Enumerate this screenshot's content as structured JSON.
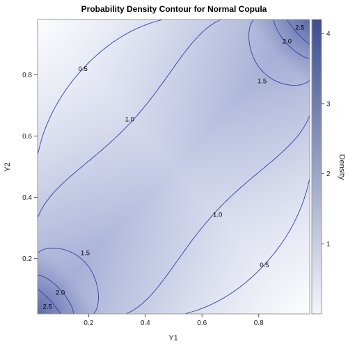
{
  "chart_data": {
    "type": "contour",
    "title": "Probability Density Contour for Normal Copula",
    "xlabel": "Y1",
    "ylabel": "Y2",
    "xlim": [
      0.02,
      0.98
    ],
    "ylim": [
      0.02,
      0.98
    ],
    "x_ticks": [
      0.2,
      0.4,
      0.6,
      0.8
    ],
    "y_ticks": [
      0.2,
      0.4,
      0.6,
      0.8
    ],
    "x_tick_labels": [
      "0.2",
      "0.4",
      "0.6",
      "0.8"
    ],
    "y_tick_labels": [
      "0.2",
      "0.4",
      "0.6",
      "0.8"
    ],
    "contour_levels": [
      0.5,
      1.0,
      1.5,
      2.0,
      2.5
    ],
    "contour_labels": [
      {
        "text": "0.5",
        "x": 0.18,
        "y": 0.82
      },
      {
        "text": "1.0",
        "x": 0.345,
        "y": 0.655
      },
      {
        "text": "1.5",
        "x": 0.812,
        "y": 0.78
      },
      {
        "text": "2.0",
        "x": 0.9,
        "y": 0.91
      },
      {
        "text": "2.5",
        "x": 0.945,
        "y": 0.955
      },
      {
        "text": "0.5",
        "x": 0.82,
        "y": 0.18
      },
      {
        "text": "1.0",
        "x": 0.655,
        "y": 0.345
      },
      {
        "text": "1.5",
        "x": 0.188,
        "y": 0.22
      },
      {
        "text": "2.0",
        "x": 0.1,
        "y": 0.09
      },
      {
        "text": "2.5",
        "x": 0.055,
        "y": 0.045
      }
    ],
    "colorbar": {
      "label": "Density",
      "ticks": [
        1,
        2,
        3,
        4
      ],
      "tick_labels": [
        "1",
        "2",
        "3",
        "4"
      ],
      "range": [
        0,
        4.2
      ],
      "color_low": "#f4f5fb",
      "color_high": "#3c4e8f"
    },
    "grid": false
  }
}
